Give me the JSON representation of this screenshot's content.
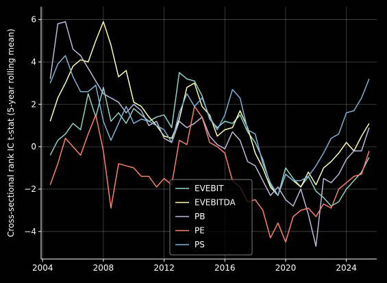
{
  "chart_data": {
    "type": "line",
    "title": "",
    "xlabel": "",
    "ylabel": "Cross-sectional rank IC t-stat (5-year rolling mean)",
    "xlim": [
      2003.9,
      2026.0
    ],
    "ylim": [
      -5.3,
      6.6
    ],
    "x_ticks": [
      2004,
      2008,
      2012,
      2016,
      2020,
      2024
    ],
    "x_tick_labels": [
      "2004",
      "2008",
      "2012",
      "2016",
      "2020",
      "2024"
    ],
    "y_ticks": [
      -4,
      -2,
      0,
      2,
      4,
      6
    ],
    "y_tick_labels": [
      "−4",
      "−2",
      "0",
      "2",
      "4",
      "6"
    ],
    "grid": true,
    "legend_position": "lower-center",
    "series": [
      {
        "name": "EVEBIT",
        "color": "#8dd3c7",
        "x": [
          2004.5,
          2005.0,
          2005.5,
          2006.0,
          2006.5,
          2007.0,
          2007.5,
          2008.0,
          2008.5,
          2009.0,
          2009.5,
          2010.0,
          2010.5,
          2011.0,
          2011.5,
          2012.0,
          2012.5,
          2013.0,
          2013.5,
          2014.0,
          2014.5,
          2015.0,
          2015.5,
          2016.0,
          2016.5,
          2017.0,
          2017.5,
          2018.0,
          2018.5,
          2019.0,
          2019.5,
          2020.0,
          2020.5,
          2021.0,
          2021.5,
          2022.0,
          2022.5,
          2023.0,
          2023.5,
          2024.0,
          2024.5,
          2025.0,
          2025.5
        ],
        "y": [
          -0.4,
          0.3,
          0.6,
          1.1,
          0.8,
          2.5,
          1.4,
          2.8,
          1.2,
          1.6,
          1.1,
          1.8,
          1.5,
          1.2,
          1.4,
          1.5,
          0.9,
          3.5,
          3.2,
          3.1,
          2.4,
          1.3,
          0.9,
          1.2,
          1.1,
          1.5,
          0.7,
          0.2,
          -0.6,
          -1.8,
          -2.3,
          -1.0,
          -1.5,
          -1.9,
          -1.4,
          -2.1,
          -2.4,
          -2.8,
          -2.6,
          -2.0,
          -1.6,
          -1.2,
          -0.5
        ]
      },
      {
        "name": "EVEBITDA",
        "color": "#ffffb3",
        "x": [
          2004.5,
          2005.0,
          2005.5,
          2006.0,
          2006.5,
          2007.0,
          2007.5,
          2008.0,
          2008.5,
          2009.0,
          2009.5,
          2010.0,
          2010.5,
          2011.0,
          2011.5,
          2012.0,
          2012.5,
          2013.0,
          2013.5,
          2014.0,
          2014.5,
          2015.0,
          2015.5,
          2016.0,
          2016.5,
          2017.0,
          2017.5,
          2018.0,
          2018.5,
          2019.0,
          2019.5,
          2020.0,
          2020.5,
          2021.0,
          2021.5,
          2022.0,
          2022.5,
          2023.0,
          2023.5,
          2024.0,
          2024.5,
          2025.0,
          2025.5
        ],
        "y": [
          1.2,
          2.3,
          3.0,
          3.8,
          4.1,
          4.0,
          5.0,
          5.9,
          4.8,
          3.3,
          3.6,
          2.1,
          1.9,
          1.4,
          1.0,
          0.5,
          0.4,
          1.3,
          2.8,
          3.0,
          1.9,
          1.5,
          0.5,
          0.8,
          0.9,
          1.7,
          0.9,
          -0.3,
          -1.0,
          -1.9,
          -2.3,
          -1.3,
          -1.6,
          -1.9,
          -1.2,
          -1.8,
          -1.0,
          -0.7,
          -0.3,
          0.2,
          -0.2,
          0.5,
          1.1
        ]
      },
      {
        "name": "PB",
        "color": "#bebada",
        "x": [
          2004.5,
          2005.0,
          2005.5,
          2006.0,
          2006.5,
          2007.0,
          2007.5,
          2008.0,
          2008.5,
          2009.0,
          2009.5,
          2010.0,
          2010.5,
          2011.0,
          2011.5,
          2012.0,
          2012.5,
          2013.0,
          2013.5,
          2014.0,
          2014.5,
          2015.0,
          2015.5,
          2016.0,
          2016.5,
          2017.0,
          2017.5,
          2018.0,
          2018.5,
          2019.0,
          2019.5,
          2020.0,
          2020.5,
          2021.0,
          2021.5,
          2022.0,
          2022.5,
          2023.0,
          2023.5,
          2024.0,
          2024.5,
          2025.0,
          2025.5
        ],
        "y": [
          3.2,
          5.8,
          5.9,
          4.6,
          4.3,
          3.7,
          3.1,
          2.5,
          2.3,
          2.1,
          1.6,
          2.0,
          1.7,
          1.0,
          1.2,
          0.4,
          0.2,
          1.2,
          0.9,
          1.1,
          1.4,
          0.5,
          0.1,
          -0.1,
          0.7,
          0.3,
          -0.7,
          -0.9,
          -1.6,
          -2.3,
          -1.9,
          -2.5,
          -2.8,
          -2.0,
          -3.2,
          -4.7,
          -1.5,
          -1.7,
          -1.3,
          -0.6,
          -0.2,
          -0.2,
          0.9
        ]
      },
      {
        "name": "PE",
        "color": "#fb8072",
        "x": [
          2004.5,
          2005.0,
          2005.5,
          2006.0,
          2006.5,
          2007.0,
          2007.5,
          2008.0,
          2008.5,
          2009.0,
          2009.5,
          2010.0,
          2010.5,
          2011.0,
          2011.5,
          2012.0,
          2012.5,
          2013.0,
          2013.5,
          2014.0,
          2014.5,
          2015.0,
          2015.5,
          2016.0,
          2016.5,
          2017.0,
          2017.5,
          2018.0,
          2018.5,
          2019.0,
          2019.5,
          2020.0,
          2020.5,
          2021.0,
          2021.5,
          2022.0,
          2022.5,
          2023.0,
          2023.5,
          2024.0,
          2024.5,
          2025.0,
          2025.5
        ],
        "y": [
          -1.8,
          -0.8,
          0.4,
          0.0,
          -0.4,
          0.6,
          1.5,
          -0.2,
          -2.9,
          -0.8,
          -0.9,
          -1.0,
          -1.4,
          -1.4,
          -1.9,
          -1.5,
          -1.8,
          0.3,
          0.1,
          1.9,
          1.4,
          0.2,
          0.0,
          -0.3,
          -1.6,
          -1.9,
          -2.6,
          -2.5,
          -3.0,
          -4.3,
          -3.6,
          -4.5,
          -3.3,
          -3.0,
          -2.9,
          -3.3,
          -2.7,
          -2.9,
          -2.0,
          -1.7,
          -1.4,
          -1.3,
          -0.2
        ]
      },
      {
        "name": "PS",
        "color": "#80b1d3",
        "x": [
          2004.5,
          2005.0,
          2005.5,
          2006.0,
          2006.5,
          2007.0,
          2007.5,
          2008.0,
          2008.5,
          2009.0,
          2009.5,
          2010.0,
          2010.5,
          2011.0,
          2011.5,
          2012.0,
          2012.5,
          2013.0,
          2013.5,
          2014.0,
          2014.5,
          2015.0,
          2015.5,
          2016.0,
          2016.5,
          2017.0,
          2017.5,
          2018.0,
          2018.5,
          2019.0,
          2019.5,
          2020.0,
          2020.5,
          2021.0,
          2021.5,
          2022.0,
          2022.5,
          2023.0,
          2023.5,
          2024.0,
          2024.5,
          2025.0,
          2025.5
        ],
        "y": [
          3.0,
          3.9,
          4.3,
          3.3,
          2.6,
          2.6,
          2.9,
          1.2,
          0.3,
          1.1,
          1.9,
          1.1,
          1.3,
          1.2,
          1.0,
          0.8,
          0.2,
          1.6,
          2.5,
          1.9,
          2.3,
          1.4,
          0.8,
          1.5,
          2.7,
          2.3,
          0.8,
          0.6,
          -0.8,
          -1.7,
          -2.3,
          -1.3,
          -1.6,
          -1.6,
          -1.4,
          -0.9,
          -0.3,
          0.4,
          0.6,
          1.6,
          1.7,
          2.3,
          3.2
        ]
      }
    ]
  }
}
